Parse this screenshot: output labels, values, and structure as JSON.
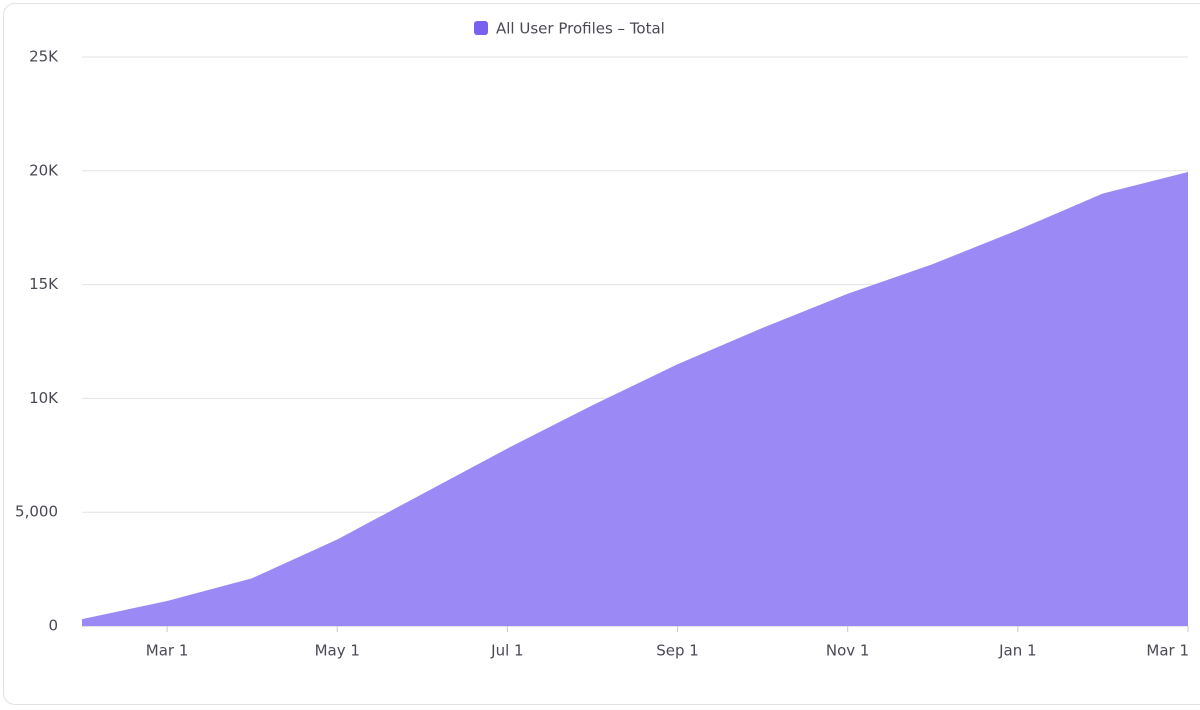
{
  "chart_data": {
    "type": "area",
    "categories": [
      null,
      "Mar 1",
      null,
      "May 1",
      null,
      "Jul 1",
      null,
      "Sep 1",
      null,
      "Nov 1",
      null,
      "Jan 1",
      null,
      "Mar 1"
    ],
    "series": [
      {
        "name": "All User Profiles – Total",
        "color": "#9b8af5",
        "values": [
          300,
          1100,
          2100,
          3800,
          5800,
          7800,
          9700,
          11500,
          13100,
          14600,
          15900,
          17400,
          19000,
          19950
        ]
      }
    ],
    "ylim": [
      0,
      25000
    ],
    "yticks": [
      0,
      {
        "value": 5000,
        "label": "5,000"
      },
      {
        "value": 10000,
        "label": "10K"
      },
      {
        "value": 15000,
        "label": "15K"
      },
      {
        "value": 20000,
        "label": "20K"
      },
      {
        "value": 25000,
        "label": "25K"
      }
    ],
    "grid": true
  }
}
